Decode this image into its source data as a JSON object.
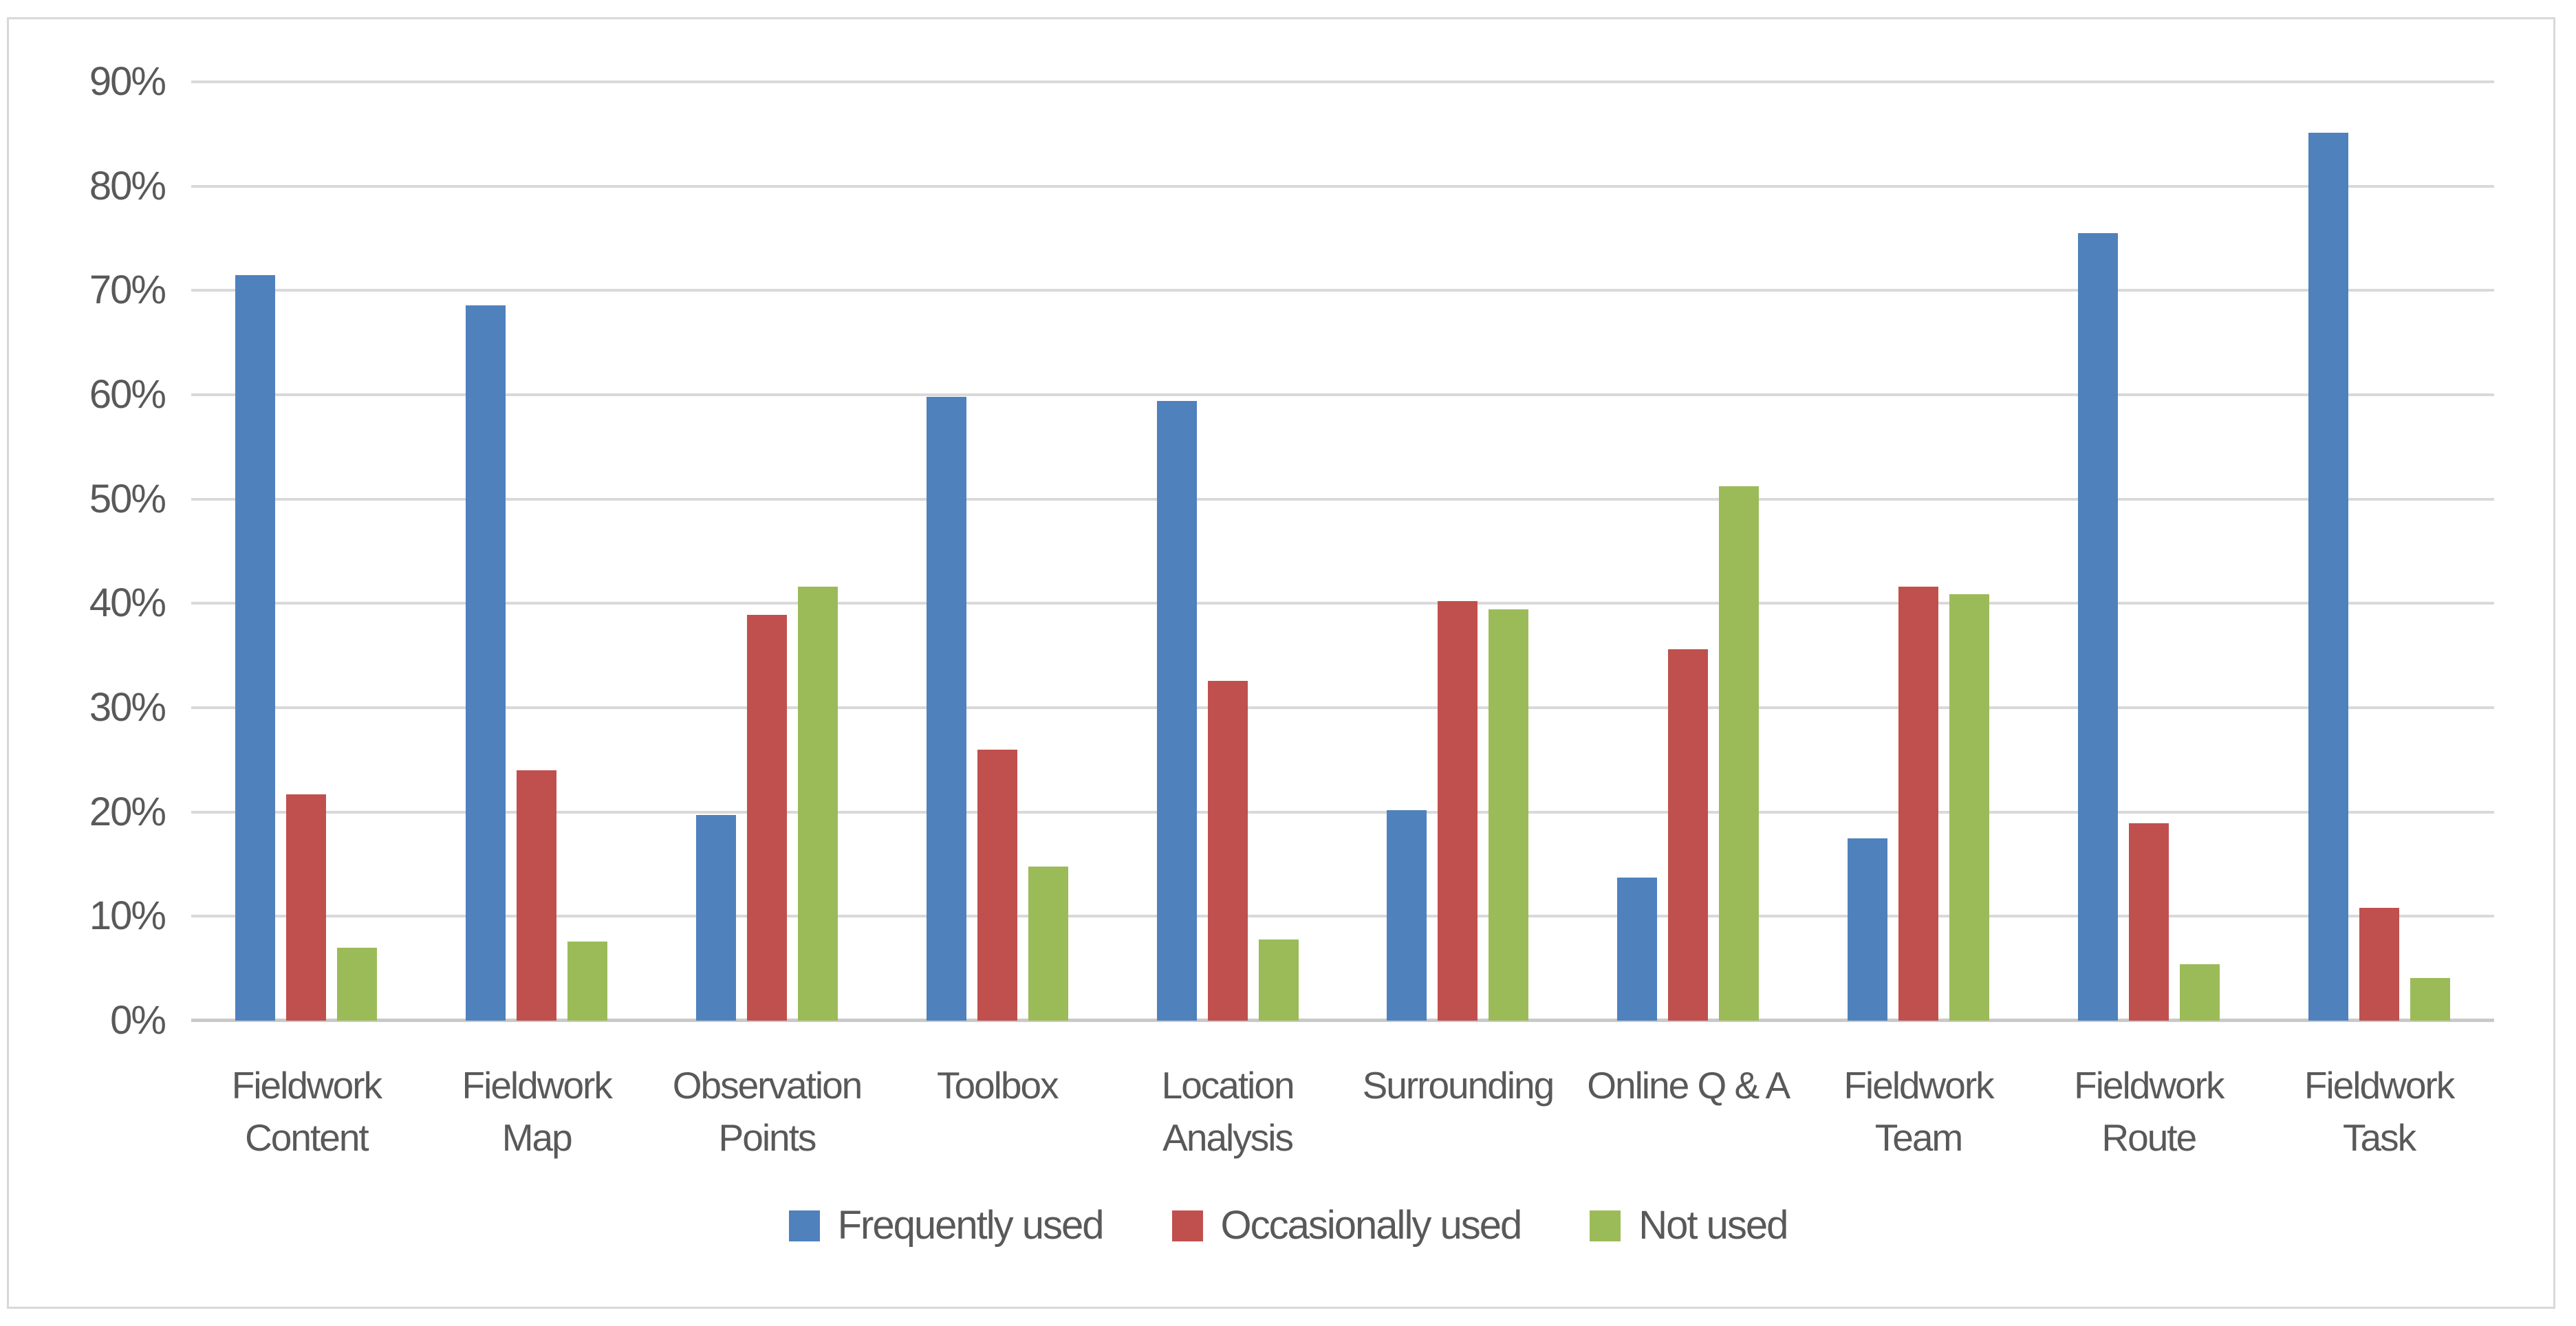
{
  "chart_data": {
    "type": "bar",
    "title": "",
    "xlabel": "",
    "ylabel": "",
    "ylim": [
      0,
      90
    ],
    "ytick_step": 10,
    "ytick_labels": [
      "0%",
      "10%",
      "20%",
      "30%",
      "40%",
      "50%",
      "60%",
      "70%",
      "80%",
      "90%"
    ],
    "grid": true,
    "legend_position": "bottom",
    "categories": [
      "Fieldwork Content",
      "Fieldwork Map",
      "Observation Points",
      "Toolbox",
      "Location Analysis",
      "Surrounding",
      "Online Q & A",
      "Fieldwork Team",
      "Fieldwork Route",
      "Fieldwork Task"
    ],
    "category_label_lines": [
      [
        "Fieldwork",
        "Content"
      ],
      [
        "Fieldwork",
        "Map"
      ],
      [
        "Observation",
        "Points"
      ],
      [
        "Toolbox"
      ],
      [
        "Location",
        "Analysis"
      ],
      [
        "Surrounding"
      ],
      [
        "Online Q & A"
      ],
      [
        "Fieldwork",
        "Team"
      ],
      [
        "Fieldwork",
        "Route"
      ],
      [
        "Fieldwork",
        "Task"
      ]
    ],
    "series": [
      {
        "name": "Frequently used",
        "color": "#4F81BD",
        "values": [
          71.5,
          68.6,
          19.7,
          59.8,
          59.4,
          20.2,
          13.7,
          17.5,
          75.5,
          85.1
        ]
      },
      {
        "name": "Occasionally used",
        "color": "#C0504D",
        "values": [
          21.7,
          24.0,
          38.9,
          26.0,
          32.6,
          40.2,
          35.6,
          41.6,
          18.9,
          10.8
        ]
      },
      {
        "name": "Not used",
        "color": "#9BBB59",
        "values": [
          7.0,
          7.6,
          41.6,
          14.8,
          7.8,
          39.4,
          51.2,
          40.9,
          5.4,
          4.1
        ]
      }
    ]
  },
  "style_colors": {
    "gridline": "#D9D9D9",
    "axis_line": "#C9C9C9",
    "frame_border": "#D8D8D8",
    "text": "#595959",
    "background": "#FFFFFF"
  }
}
